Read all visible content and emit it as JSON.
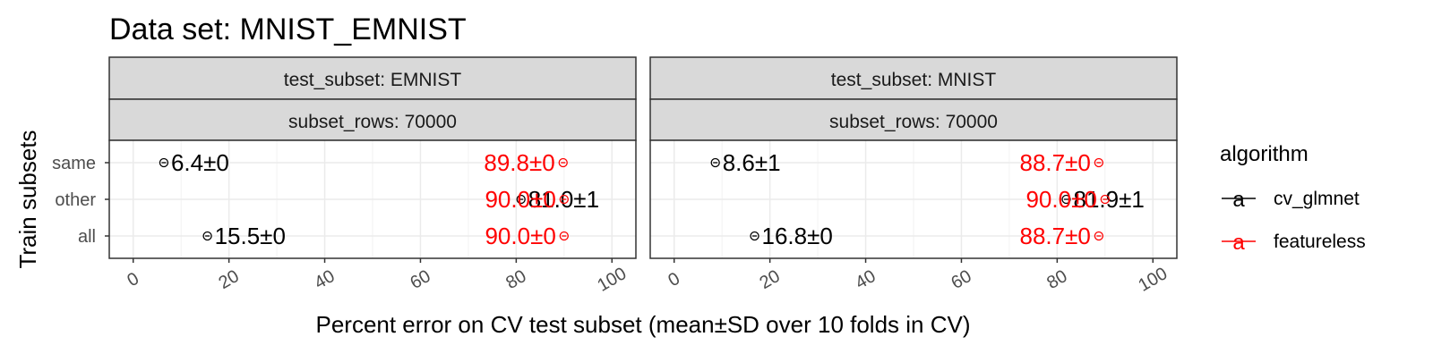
{
  "chart_data": {
    "type": "scatter",
    "title": "Data set: MNIST_EMNIST",
    "xlabel": "Percent error on CV test subset (mean±SD over 10 folds in CV)",
    "ylabel": "Train subsets",
    "xlim": [
      -5,
      105
    ],
    "x_ticks": [
      "0",
      "20",
      "40",
      "60",
      "80",
      "100"
    ],
    "y_categories": [
      "same",
      "other",
      "all"
    ],
    "grid": true,
    "legend": {
      "title": "algorithm",
      "position": "right",
      "entries": [
        {
          "name": "cv_glmnet",
          "color": "#000000"
        },
        {
          "name": "featureless",
          "color": "#ff0000"
        }
      ]
    },
    "panels": [
      {
        "strip_top": "test_subset: EMNIST",
        "strip_bottom": "subset_rows: 70000",
        "points": [
          {
            "algorithm": "cv_glmnet",
            "subset": "same",
            "x": 6.4,
            "label": "6.4±0"
          },
          {
            "algorithm": "cv_glmnet",
            "subset": "other",
            "x": 81.0,
            "label": "81.0±1"
          },
          {
            "algorithm": "cv_glmnet",
            "subset": "all",
            "x": 15.5,
            "label": "15.5±0"
          },
          {
            "algorithm": "featureless",
            "subset": "same",
            "x": 89.8,
            "label": "89.8±0"
          },
          {
            "algorithm": "featureless",
            "subset": "other",
            "x": 90.0,
            "label": "90.0±0"
          },
          {
            "algorithm": "featureless",
            "subset": "all",
            "x": 90.0,
            "label": "90.0±0"
          }
        ]
      },
      {
        "strip_top": "test_subset: MNIST",
        "strip_bottom": "subset_rows: 70000",
        "points": [
          {
            "algorithm": "cv_glmnet",
            "subset": "same",
            "x": 8.6,
            "label": "8.6±1"
          },
          {
            "algorithm": "cv_glmnet",
            "subset": "other",
            "x": 81.9,
            "label": "81.9±1"
          },
          {
            "algorithm": "cv_glmnet",
            "subset": "all",
            "x": 16.8,
            "label": "16.8±0"
          },
          {
            "algorithm": "featureless",
            "subset": "same",
            "x": 88.7,
            "label": "88.7±0"
          },
          {
            "algorithm": "featureless",
            "subset": "other",
            "x": 90.0,
            "label": "90.0±0"
          },
          {
            "algorithm": "featureless",
            "subset": "all",
            "x": 88.7,
            "label": "88.7±0"
          }
        ]
      }
    ]
  }
}
